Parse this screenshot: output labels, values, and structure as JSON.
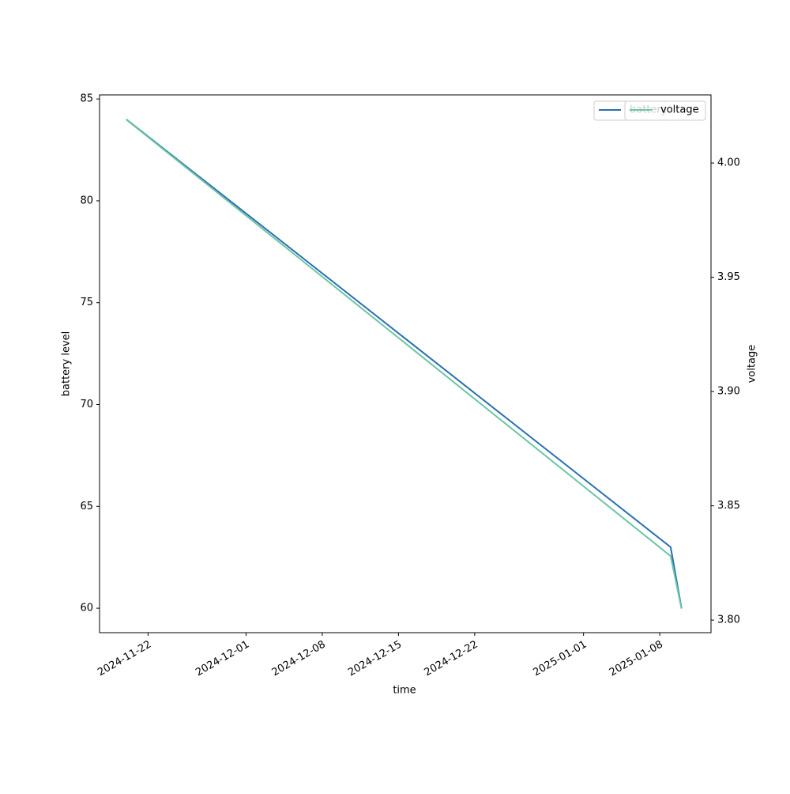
{
  "chart_data": {
    "type": "line",
    "x": [
      "2024-11-20",
      "2025-01-09",
      "2025-01-10"
    ],
    "series": [
      {
        "name": "battery",
        "color": "#2a6fb0",
        "values": [
          84,
          63,
          60
        ]
      },
      {
        "name": "voltage",
        "color": "#6cc5a5",
        "values": [
          4.019,
          3.828,
          3.805
        ],
        "axis": "y2"
      }
    ],
    "x_label": "time",
    "y_label": "battery level",
    "y2_label": "voltage",
    "xlim": [
      "2024-11-17T13:00",
      "2025-01-12T17:00"
    ],
    "xticks": [
      "2024-11-22",
      "2024-12-01",
      "2024-12-08",
      "2024-12-15",
      "2024-12-22",
      "2025-01-01",
      "2025-01-08"
    ],
    "ylim": [
      58.8,
      85.2
    ],
    "yticks": [
      60,
      65,
      70,
      75,
      80,
      85
    ],
    "y2lim": [
      3.7945,
      4.0298
    ],
    "y2ticks": [
      {
        "value": 3.8,
        "label": "3.80"
      },
      3.85,
      {
        "value": 3.9,
        "label": "3.90"
      },
      3.95,
      {
        "value": 4.0,
        "label": "4.00"
      }
    ],
    "legend": "upper right"
  }
}
